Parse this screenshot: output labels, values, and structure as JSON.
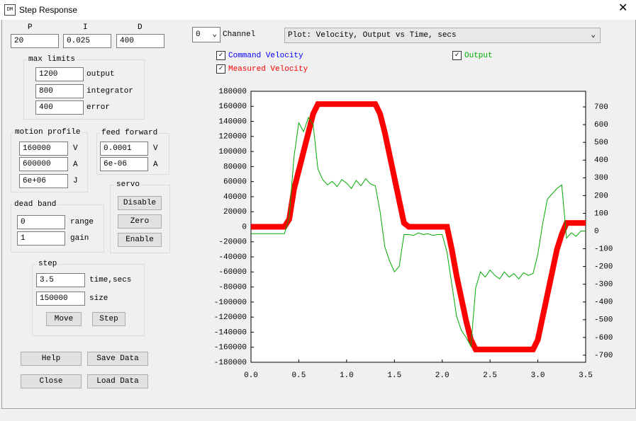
{
  "window": {
    "title": "Step Response"
  },
  "pid": {
    "labels": [
      "P",
      "I",
      "D"
    ],
    "values": [
      "20",
      "0.025",
      "400"
    ]
  },
  "max_limits": {
    "title": "max limits",
    "values": [
      "1200",
      "800",
      "400"
    ],
    "labels": [
      "output",
      "integrator",
      "error"
    ]
  },
  "motion_profile": {
    "title": "motion profile",
    "values": [
      "160000",
      "600000",
      "6e+06"
    ],
    "labels": [
      "V",
      "A",
      "J"
    ]
  },
  "feed_forward": {
    "title": "feed forward",
    "values": [
      "0.0001",
      "6e-06"
    ],
    "labels": [
      "V",
      "A"
    ]
  },
  "servo": {
    "title": "servo",
    "buttons": [
      "Disable",
      "Zero",
      "Enable"
    ]
  },
  "dead_band": {
    "title": "dead band",
    "values": [
      "0",
      "1"
    ],
    "labels": [
      "range",
      "gain"
    ]
  },
  "step": {
    "title": "step",
    "values": [
      "3.5",
      "150000"
    ],
    "labels": [
      "time,secs",
      "size"
    ],
    "buttons": [
      "Move",
      "Step"
    ]
  },
  "buttons": [
    "Help",
    "Save Data",
    "Close",
    "Load Data"
  ],
  "channel": {
    "value": "0",
    "label": "Channel"
  },
  "plot_select": "Plot: Velocity, Output vs Time, secs",
  "chart_data": {
    "type": "line",
    "x": [
      0.0,
      0.05,
      0.1,
      0.15,
      0.2,
      0.25,
      0.3,
      0.35,
      0.4,
      0.45,
      0.5,
      0.55,
      0.6,
      0.65,
      0.7,
      0.75,
      0.8,
      0.85,
      0.9,
      0.95,
      1.0,
      1.05,
      1.1,
      1.15,
      1.2,
      1.25,
      1.3,
      1.35,
      1.4,
      1.45,
      1.5,
      1.55,
      1.6,
      1.65,
      1.7,
      1.75,
      1.8,
      1.85,
      1.9,
      1.95,
      2.0,
      2.05,
      2.1,
      2.15,
      2.2,
      2.25,
      2.3,
      2.35,
      2.4,
      2.45,
      2.5,
      2.55,
      2.6,
      2.65,
      2.7,
      2.75,
      2.8,
      2.85,
      2.9,
      2.95,
      3.0,
      3.05,
      3.1,
      3.15,
      3.2,
      3.25,
      3.3,
      3.35,
      3.4,
      3.45,
      3.5
    ],
    "series": [
      {
        "name": "Command Velocity",
        "color": "#0000ff",
        "values": [
          0,
          0,
          0,
          0,
          0,
          0,
          0,
          0,
          10000,
          50000,
          75000,
          100000,
          125000,
          150000,
          163000,
          163000,
          163000,
          163000,
          163000,
          163000,
          163000,
          163000,
          163000,
          163000,
          163000,
          163000,
          163000,
          150000,
          125000,
          95000,
          65000,
          35000,
          5000,
          0,
          0,
          0,
          0,
          0,
          0,
          0,
          0,
          0,
          -30000,
          -65000,
          -95000,
          -125000,
          -150000,
          -163000,
          -163000,
          -163000,
          -163000,
          -163000,
          -163000,
          -163000,
          -163000,
          -163000,
          -163000,
          -163000,
          -163000,
          -163000,
          -150000,
          -120000,
          -90000,
          -60000,
          -30000,
          -10000,
          5000,
          5000,
          5000,
          5000,
          5000
        ]
      },
      {
        "name": "Measured Velocity",
        "color": "#ff0000",
        "values": [
          0,
          0,
          0,
          0,
          0,
          0,
          0,
          0,
          10000,
          50000,
          75000,
          100000,
          125000,
          150000,
          163000,
          163000,
          163000,
          163000,
          163000,
          163000,
          163000,
          163000,
          163000,
          163000,
          163000,
          163000,
          163000,
          150000,
          125000,
          95000,
          65000,
          35000,
          5000,
          0,
          0,
          0,
          0,
          0,
          0,
          0,
          0,
          0,
          -30000,
          -65000,
          -95000,
          -125000,
          -150000,
          -163000,
          -163000,
          -163000,
          -163000,
          -163000,
          -163000,
          -163000,
          -163000,
          -163000,
          -163000,
          -163000,
          -163000,
          -163000,
          -150000,
          -120000,
          -90000,
          -60000,
          -30000,
          -10000,
          5000,
          5000,
          5000,
          5000,
          5000
        ]
      },
      {
        "name": "Output",
        "color": "#00aa00",
        "axis": "y2",
        "values": [
          -15,
          -15,
          -15,
          -15,
          -15,
          -15,
          -15,
          -15,
          80,
          420,
          610,
          560,
          640,
          600,
          350,
          290,
          260,
          280,
          250,
          290,
          270,
          240,
          285,
          255,
          295,
          265,
          255,
          110,
          -90,
          -170,
          -230,
          -200,
          -20,
          -20,
          -25,
          -10,
          -20,
          -15,
          -25,
          -20,
          -20,
          -120,
          -300,
          -480,
          -560,
          -600,
          -650,
          -320,
          -230,
          -260,
          -220,
          -250,
          -270,
          -230,
          -260,
          -240,
          -270,
          -235,
          -250,
          -240,
          -130,
          40,
          180,
          210,
          240,
          260,
          -40,
          -10,
          -30,
          0,
          0
        ]
      }
    ],
    "xlim": [
      0,
      3.5
    ],
    "xticks": [
      {
        "value": 0,
        "label": "0.0"
      },
      0.5,
      {
        "value": 1,
        "label": "1.0"
      },
      1.5,
      {
        "value": 2,
        "label": "2.0"
      },
      2.5,
      {
        "value": 3,
        "label": "3.0"
      },
      3.5
    ],
    "ylim": [
      -180000,
      180000
    ],
    "yticks": [
      180000,
      160000,
      140000,
      120000,
      100000,
      80000,
      60000,
      40000,
      20000,
      0,
      -20000,
      -40000,
      -60000,
      -80000,
      -100000,
      -120000,
      -140000,
      -160000,
      -180000
    ],
    "y2lim": [
      -740,
      788
    ],
    "y2ticks": [
      700,
      600,
      500,
      400,
      300,
      200,
      100,
      0,
      -100,
      -200,
      -300,
      -400,
      -500,
      -600,
      -700
    ]
  }
}
